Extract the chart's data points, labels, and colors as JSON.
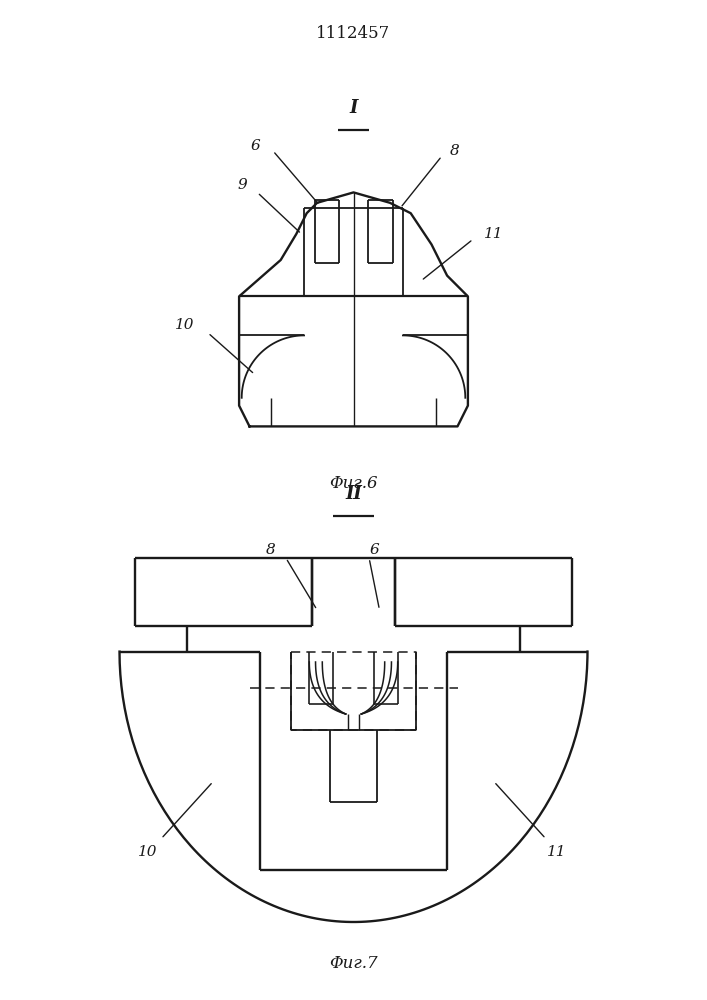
{
  "title": "1112457",
  "fig6_caption": "Φиг.6",
  "fig7_caption": "Φиг.7",
  "section_I": "I",
  "section_II": "II",
  "bg_color": "#ffffff",
  "line_color": "#1a1a1a",
  "line_width": 1.3
}
